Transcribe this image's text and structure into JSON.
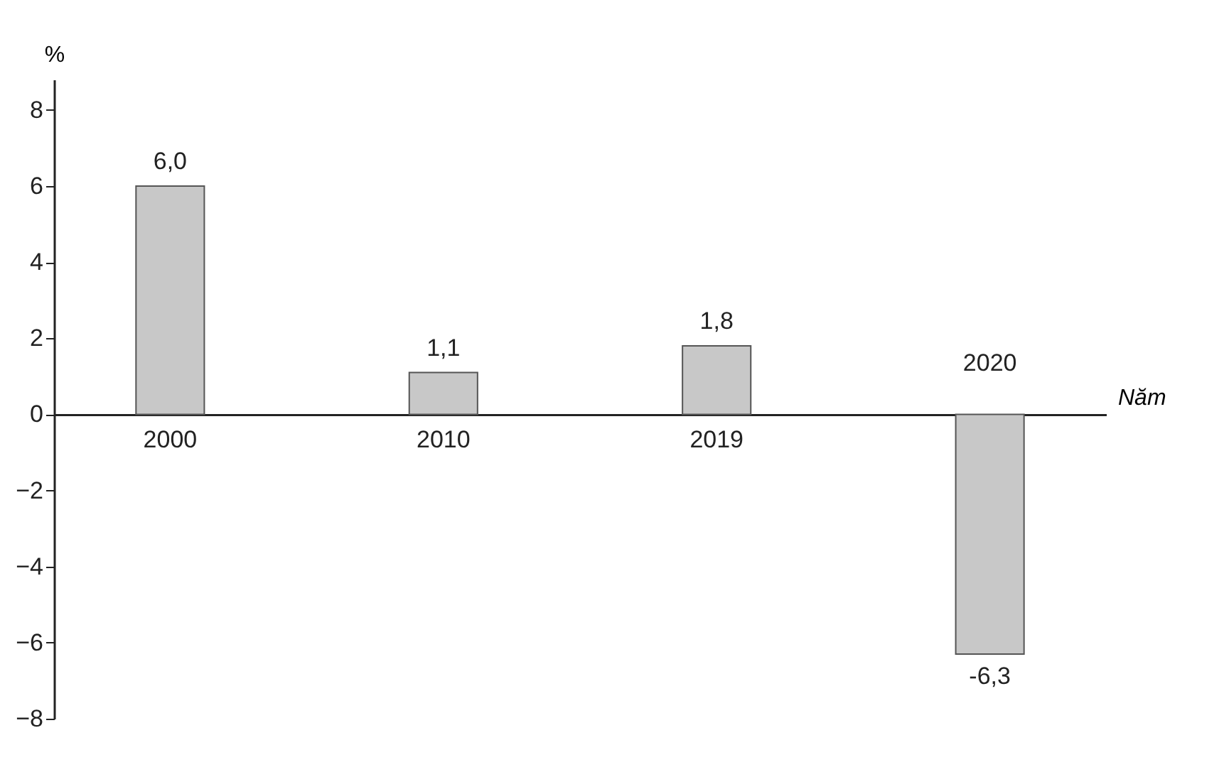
{
  "chart_data": {
    "type": "bar",
    "xlabel": "Năm",
    "ylabel": "%",
    "categories": [
      "2000",
      "2010",
      "2019",
      "2020"
    ],
    "values": [
      6.0,
      1.1,
      1.8,
      -6.3
    ],
    "value_labels": [
      "6,0",
      "1,1",
      "1,8",
      "-6,3"
    ],
    "color": "#c8c8c8",
    "ylim": [
      -8,
      8.8
    ],
    "yticks": [
      -8,
      -6,
      -4,
      -2,
      0,
      2,
      4,
      6,
      8
    ],
    "grid": false
  }
}
